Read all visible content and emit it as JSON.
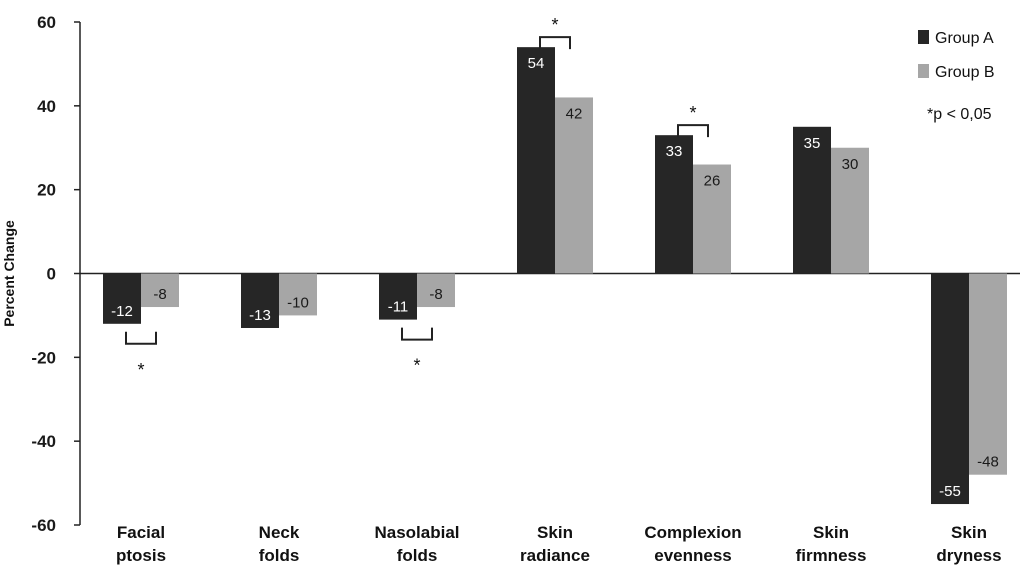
{
  "chart_data": {
    "type": "bar",
    "ylabel": "Percent Change",
    "ylim": [
      -60,
      60
    ],
    "yticks": [
      60,
      40,
      20,
      0,
      -20,
      -40,
      -60
    ],
    "categories": [
      [
        "Facial",
        "ptosis"
      ],
      [
        "Neck",
        "folds"
      ],
      [
        "Nasolabial",
        "folds"
      ],
      [
        "Skin",
        "radiance"
      ],
      [
        "Complexion",
        "evenness"
      ],
      [
        "Skin",
        "firmness"
      ],
      [
        "Skin",
        "dryness"
      ]
    ],
    "series": [
      {
        "name": "Group A",
        "color": "#262626",
        "label_color": "#ffffff",
        "values": [
          -12,
          -13,
          -11,
          54,
          33,
          35,
          -55
        ]
      },
      {
        "name": "Group B",
        "color": "#a6a6a6",
        "label_color": "#1a1a1a",
        "values": [
          -8,
          -10,
          -8,
          42,
          26,
          30,
          -48
        ]
      }
    ],
    "significance": {
      "marker": "*",
      "categories": [
        0,
        2,
        3,
        4
      ]
    },
    "legend": {
      "position": "top-right",
      "note": "*p < 0,05"
    },
    "grid": false
  }
}
